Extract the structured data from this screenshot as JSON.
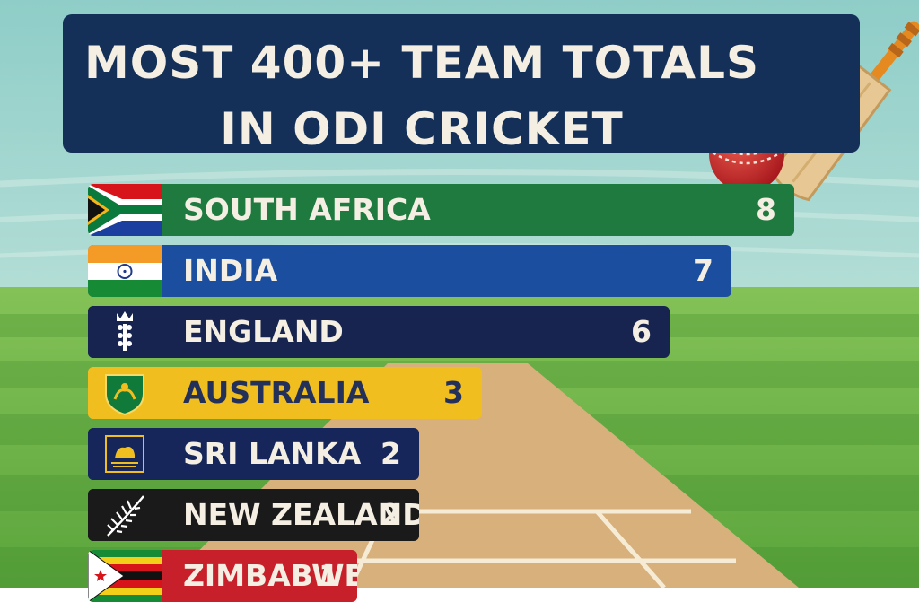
{
  "title": {
    "line1": "MOST 400+ TEAM TOTALS",
    "line2": "IN ODI CRICKET"
  },
  "chart_data": {
    "type": "bar",
    "orientation": "horizontal",
    "title": "MOST 400+ TEAM TOTALS IN ODI CRICKET",
    "categories": [
      "SOUTH AFRICA",
      "INDIA",
      "ENGLAND",
      "AUSTRALIA",
      "SRI LANKA",
      "NEW ZEALAND",
      "ZIMBABWE"
    ],
    "values": [
      8,
      7,
      6,
      3,
      2,
      2,
      1
    ],
    "data_labels": [
      "8",
      "7",
      "6",
      "3",
      "2",
      "2",
      "1"
    ],
    "xlim": [
      0,
      8
    ],
    "grid": false,
    "legend": "none"
  },
  "bar_styles": [
    {
      "color": "#1e7a3e",
      "text_color": "#f4efe2",
      "flag": "south-africa-flag"
    },
    {
      "color": "#1b4e9e",
      "text_color": "#f4efe2",
      "flag": "india-flag"
    },
    {
      "color": "#16244f",
      "text_color": "#f4efe2",
      "flag": "england-crest"
    },
    {
      "color": "#f0be1e",
      "text_color": "#23305a",
      "flag": "australia-logo"
    },
    {
      "color": "#16265a",
      "text_color": "#f4efe2",
      "flag": "sri-lanka-logo"
    },
    {
      "color": "#1a1a1a",
      "text_color": "#f4efe2",
      "flag": "new-zealand-fern"
    },
    {
      "color": "#c8202b",
      "text_color": "#f4efe2",
      "flag": "zimbabwe-flag"
    }
  ],
  "colors": {
    "sky": "#93cfc9",
    "grass_light": "#7cbc52",
    "grass_dark": "#4f9a38",
    "pitch": "#d9b483",
    "banner": "#143058",
    "ball": "#c8262a",
    "bat": "#e6c691",
    "bat_handle": "#e58a21"
  },
  "icons": [
    "cricket-bat-icon",
    "cricket-ball-icon"
  ]
}
